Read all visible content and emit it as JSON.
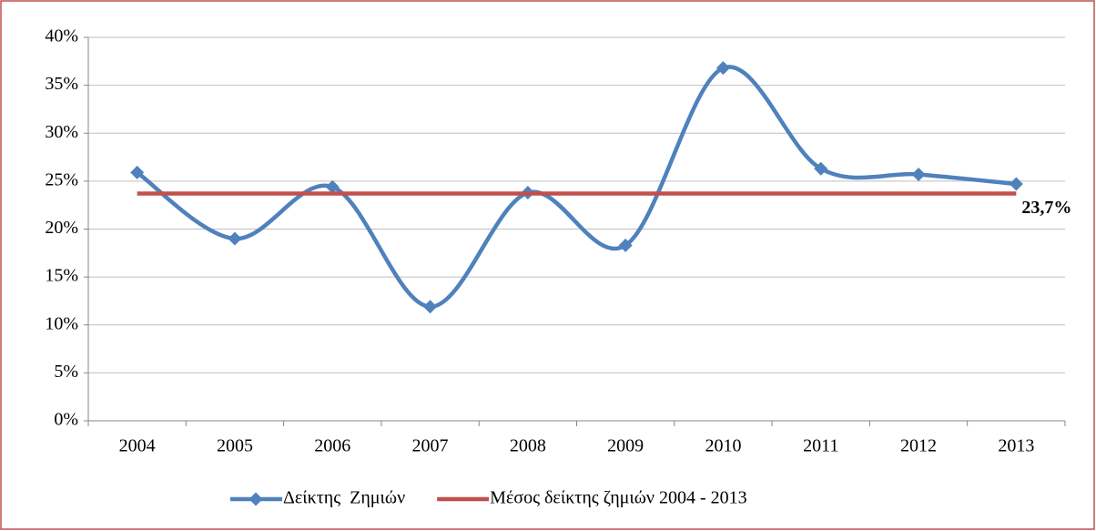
{
  "chart_data": {
    "type": "line",
    "categories": [
      "2004",
      "2005",
      "2006",
      "2007",
      "2008",
      "2009",
      "2010",
      "2011",
      "2012",
      "2013"
    ],
    "series": [
      {
        "name": "Δείκτης  Ζημιών",
        "color": "#4f81bd",
        "smooth": true,
        "marker": "diamond",
        "values": [
          25.9,
          19.0,
          24.4,
          11.9,
          23.8,
          18.3,
          36.8,
          26.3,
          25.7,
          24.7
        ]
      },
      {
        "name": "Μέσος δείκτης ζημιών 2004 - 2013",
        "color": "#c0504d",
        "smooth": false,
        "marker": null,
        "values": [
          23.7,
          23.7,
          23.7,
          23.7,
          23.7,
          23.7,
          23.7,
          23.7,
          23.7,
          23.7
        ],
        "value_labels": [
          null,
          null,
          null,
          null,
          null,
          null,
          null,
          null,
          null,
          "23,7%"
        ]
      }
    ],
    "ylim": [
      0,
      40
    ],
    "yticks": [
      {
        "value": 0,
        "label": "0%"
      },
      {
        "value": 5,
        "label": "5%"
      },
      {
        "value": 10,
        "label": "10%"
      },
      {
        "value": 15,
        "label": "15%"
      },
      {
        "value": 20,
        "label": "20%"
      },
      {
        "value": 25,
        "label": "25%"
      },
      {
        "value": 30,
        "label": "30%"
      },
      {
        "value": 35,
        "label": "35%"
      },
      {
        "value": 40,
        "label": "40%"
      }
    ],
    "grid": true,
    "legend": "bottom"
  }
}
